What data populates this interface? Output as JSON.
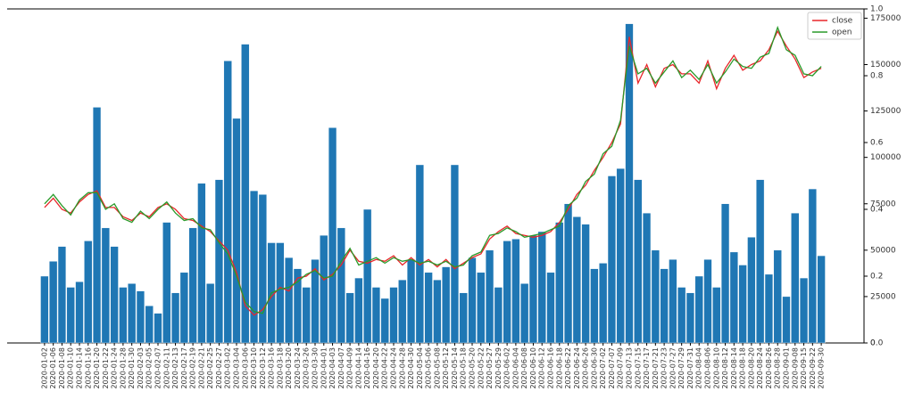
{
  "chart_data": {
    "type": "bar_line",
    "categories": [
      "2020-01-02",
      "2020-01-06",
      "2020-01-08",
      "2020-01-10",
      "2020-01-14",
      "2020-01-16",
      "2020-01-20",
      "2020-01-22",
      "2020-01-24",
      "2020-01-28",
      "2020-01-30",
      "2020-02-03",
      "2020-02-05",
      "2020-02-07",
      "2020-02-11",
      "2020-02-13",
      "2020-02-17",
      "2020-02-19",
      "2020-02-21",
      "2020-02-25",
      "2020-02-27",
      "2020-03-02",
      "2020-03-04",
      "2020-03-06",
      "2020-03-10",
      "2020-03-12",
      "2020-03-16",
      "2020-03-18",
      "2020-03-20",
      "2020-03-24",
      "2020-03-26",
      "2020-03-30",
      "2020-04-01",
      "2020-04-03",
      "2020-04-07",
      "2020-04-09",
      "2020-04-14",
      "2020-04-16",
      "2020-04-20",
      "2020-04-22",
      "2020-04-24",
      "2020-04-28",
      "2020-04-30",
      "2020-05-04",
      "2020-05-06",
      "2020-05-08",
      "2020-05-12",
      "2020-05-14",
      "2020-05-18",
      "2020-05-20",
      "2020-05-22",
      "2020-05-27",
      "2020-05-29",
      "2020-06-02",
      "2020-06-04",
      "2020-06-08",
      "2020-06-10",
      "2020-06-12",
      "2020-06-16",
      "2020-06-18",
      "2020-06-22",
      "2020-06-24",
      "2020-06-26",
      "2020-06-30",
      "2020-07-02",
      "2020-07-07",
      "2020-07-09",
      "2020-07-13",
      "2020-07-15",
      "2020-07-17",
      "2020-07-21",
      "2020-07-23",
      "2020-07-27",
      "2020-07-29",
      "2020-07-31",
      "2020-08-04",
      "2020-08-06",
      "2020-08-10",
      "2020-08-12",
      "2020-08-14",
      "2020-08-18",
      "2020-08-20",
      "2020-08-24",
      "2020-08-26",
      "2020-08-28",
      "2020-09-01",
      "2020-09-08",
      "2020-09-15",
      "2020-09-22",
      "2020-09-30"
    ],
    "values": [
      36000,
      44000,
      52000,
      30000,
      33000,
      55000,
      127000,
      62000,
      52000,
      30000,
      32000,
      28000,
      20000,
      16000,
      65000,
      27000,
      38000,
      62000,
      86000,
      32000,
      88000,
      152000,
      121000,
      161000,
      82000,
      80000,
      54000,
      54000,
      46000,
      40000,
      30000,
      45000,
      58000,
      116000,
      62000,
      27000,
      35000,
      72000,
      30000,
      24000,
      30000,
      34000,
      45000,
      96000,
      38000,
      34000,
      41000,
      96000,
      27000,
      46000,
      38000,
      50000,
      30000,
      55000,
      56000,
      32000,
      58000,
      60000,
      38000,
      65000,
      75000,
      68000,
      64000,
      40000,
      43000,
      90000,
      94000,
      172000,
      88000,
      70000,
      50000,
      40000,
      45000,
      30000,
      27000,
      36000,
      45000,
      30000,
      75000,
      49000,
      42000,
      57000,
      88000,
      37000,
      50000,
      25000,
      70000,
      35000,
      83000,
      47000
    ],
    "color": "#1f77b4",
    "series": [
      {
        "name": "close",
        "color": "#e8262a",
        "values": [
          73000,
          78000,
          72000,
          70000,
          76000,
          80000,
          82000,
          73000,
          73000,
          68000,
          66000,
          70000,
          68000,
          73000,
          75000,
          72000,
          67000,
          66000,
          63000,
          60000,
          55000,
          50000,
          38000,
          20000,
          15000,
          18000,
          25000,
          30000,
          28000,
          35000,
          36000,
          40000,
          34000,
          37000,
          42000,
          50000,
          44000,
          43000,
          45000,
          44000,
          47000,
          42000,
          46000,
          42000,
          45000,
          41000,
          45000,
          40000,
          43000,
          46000,
          48000,
          56000,
          60000,
          63000,
          59000,
          58000,
          57000,
          58000,
          60000,
          65000,
          72000,
          80000,
          85000,
          93000,
          100000,
          108000,
          118000,
          165000,
          140000,
          150000,
          138000,
          148000,
          150000,
          145000,
          145000,
          140000,
          152000,
          137000,
          148000,
          155000,
          147000,
          150000,
          152000,
          158000,
          168000,
          160000,
          153000,
          143000,
          146000,
          148000
        ]
      },
      {
        "name": "open",
        "color": "#2a9a2a",
        "values": [
          75000,
          80000,
          74000,
          69000,
          77000,
          81000,
          81000,
          72000,
          75000,
          67000,
          65000,
          71000,
          67000,
          72000,
          76000,
          70000,
          66000,
          67000,
          62000,
          61000,
          54000,
          48000,
          36000,
          22000,
          17000,
          16000,
          27000,
          29000,
          30000,
          33000,
          37000,
          39000,
          35000,
          36000,
          44000,
          51000,
          42000,
          44000,
          46000,
          43000,
          46000,
          44000,
          45000,
          43000,
          44000,
          42000,
          44000,
          41000,
          42000,
          47000,
          49000,
          58000,
          59000,
          62000,
          60000,
          57000,
          58000,
          59000,
          61000,
          63000,
          74000,
          78000,
          87000,
          91000,
          102000,
          106000,
          120000,
          160000,
          145000,
          148000,
          140000,
          146000,
          152000,
          143000,
          147000,
          142000,
          150000,
          140000,
          146000,
          153000,
          149000,
          148000,
          154000,
          156000,
          170000,
          158000,
          155000,
          145000,
          144000,
          149000
        ]
      }
    ],
    "ylim": [
      0,
      180000
    ],
    "yticks": [
      0,
      25000,
      50000,
      75000,
      100000,
      125000,
      150000,
      175000
    ],
    "y2lim": [
      0,
      1
    ],
    "y2ticks": [
      {
        "value": 0,
        "label": "0.0"
      },
      0.2,
      0.4,
      0.6,
      0.8,
      {
        "value": 1,
        "label": "1.0"
      }
    ],
    "legend": "upper right"
  }
}
